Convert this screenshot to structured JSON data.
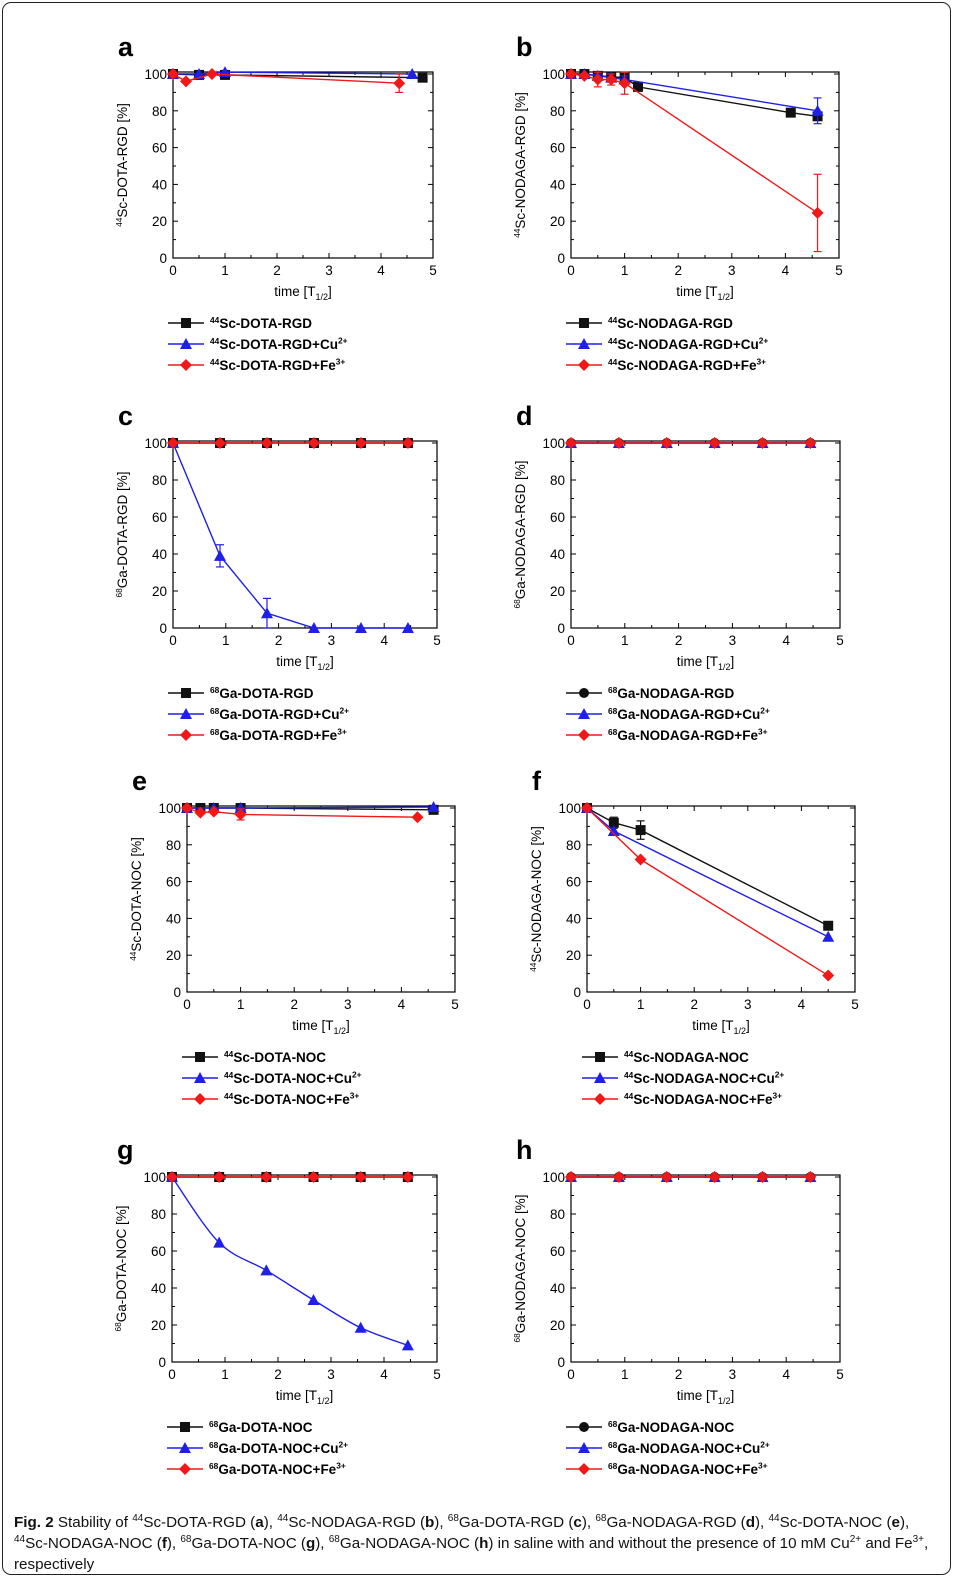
{
  "colors": {
    "black": "#111111",
    "blue": "#1f1fe8",
    "red": "#f01818"
  },
  "figure_label": "Fig. 2",
  "caption_parts": [
    {
      "t": " Stability of "
    },
    {
      "sup": "44"
    },
    {
      "t": "Sc-DOTA-RGD ("
    },
    {
      "b": "a"
    },
    {
      "t": "), "
    },
    {
      "sup": "44"
    },
    {
      "t": "Sc-NODAGA-RGD ("
    },
    {
      "b": "b"
    },
    {
      "t": "), "
    },
    {
      "sup": "68"
    },
    {
      "t": "Ga-DOTA-RGD ("
    },
    {
      "b": "c"
    },
    {
      "t": "), "
    },
    {
      "sup": "68"
    },
    {
      "t": "Ga-NODAGA-RGD ("
    },
    {
      "b": "d"
    },
    {
      "t": "), "
    },
    {
      "sup": "44"
    },
    {
      "t": "Sc-DOTA-NOC ("
    },
    {
      "b": "e"
    },
    {
      "t": "), "
    },
    {
      "sup": "44"
    },
    {
      "t": "Sc-NODAGA-NOC ("
    },
    {
      "b": "f"
    },
    {
      "t": "), "
    },
    {
      "sup": "68"
    },
    {
      "t": "Ga-DOTA-NOC ("
    },
    {
      "b": "g"
    },
    {
      "t": "), "
    },
    {
      "sup": "68"
    },
    {
      "t": "Ga-NODAGA-NOC ("
    },
    {
      "b": "h"
    },
    {
      "t": ") in saline with and without the presence of 10 mM Cu"
    },
    {
      "sup": "2+"
    },
    {
      "t": " and Fe"
    },
    {
      "sup": "3+"
    },
    {
      "t": ", respectively"
    }
  ],
  "chart_data": [
    {
      "panel": "a",
      "type": "line",
      "ylabel": "44Sc-DOTA-RGD [%]",
      "xlabel": "time [T1/2]",
      "xlim": [
        0,
        5
      ],
      "ylim": [
        0,
        100
      ],
      "series": [
        {
          "name": "44Sc-DOTA-RGD",
          "color": "black",
          "marker": "square",
          "x": [
            0,
            0.5,
            1.0,
            4.8
          ],
          "y": [
            100,
            99.5,
            99.5,
            98
          ]
        },
        {
          "name": "44Sc-DOTA-RGD+Cu2+",
          "color": "blue",
          "marker": "triangle",
          "x": [
            0,
            0.5,
            1.0,
            4.6
          ],
          "y": [
            100,
            100,
            101,
            100
          ]
        },
        {
          "name": "44Sc-DOTA-RGD+Fe3+",
          "color": "red",
          "marker": "diamond",
          "x": [
            0,
            0.25,
            0.75,
            4.35
          ],
          "y": [
            100,
            96,
            100,
            95
          ],
          "err": [
            0,
            0,
            0,
            5
          ]
        }
      ]
    },
    {
      "panel": "b",
      "type": "line",
      "ylabel": "44Sc-NODAGA-RGD [%]",
      "xlabel": "time [T1/2]",
      "xlim": [
        0,
        5
      ],
      "ylim": [
        0,
        100
      ],
      "series": [
        {
          "name": "44Sc-NODAGA-RGD",
          "color": "black",
          "marker": "square",
          "x": [
            0,
            0.25,
            0.5,
            0.75,
            1.0,
            1.25,
            4.1,
            4.6
          ],
          "y": [
            100,
            100,
            99,
            98.5,
            98,
            93,
            79,
            77
          ],
          "err": [
            0,
            0,
            1,
            1,
            1,
            1,
            0,
            2
          ]
        },
        {
          "name": "44Sc-NODAGA-RGD+Cu2+",
          "color": "blue",
          "marker": "triangle",
          "x": [
            0,
            0.25,
            0.5,
            0.75,
            1.0,
            4.6
          ],
          "y": [
            100,
            100,
            99,
            98,
            97,
            80
          ],
          "err": [
            0,
            0,
            1,
            2,
            2,
            7
          ]
        },
        {
          "name": "44Sc-NODAGA-RGD+Fe3+",
          "color": "red",
          "marker": "diamond",
          "x": [
            0,
            0.25,
            0.5,
            0.75,
            1.0,
            4.6
          ],
          "y": [
            100,
            99,
            97,
            97,
            95,
            24.5
          ],
          "err": [
            0,
            0,
            4,
            3,
            6,
            21
          ]
        }
      ]
    },
    {
      "panel": "c",
      "type": "line",
      "ylabel": "68Ga-DOTA-RGD [%]",
      "xlabel": "time [T1/2]",
      "xlim": [
        0,
        5
      ],
      "ylim": [
        0,
        100
      ],
      "series": [
        {
          "name": "68Ga-DOTA-RGD",
          "color": "black",
          "marker": "square",
          "x": [
            0,
            0.89,
            1.78,
            2.67,
            3.56,
            4.45
          ],
          "y": [
            100,
            100,
            100,
            100,
            100,
            100
          ]
        },
        {
          "name": "68Ga-DOTA-RGD+Cu2+",
          "color": "blue",
          "marker": "triangle",
          "x": [
            0,
            0.89,
            1.78,
            2.67,
            3.56,
            4.45
          ],
          "y": [
            100,
            39,
            8,
            0,
            0,
            0
          ],
          "err": [
            0,
            6,
            8,
            0,
            0,
            0
          ]
        },
        {
          "name": "68Ga-DOTA-RGD+Fe3+",
          "color": "red",
          "marker": "diamond",
          "x": [
            0,
            0.89,
            1.78,
            2.67,
            3.56,
            4.45
          ],
          "y": [
            100,
            100,
            100,
            100,
            100,
            100
          ]
        }
      ]
    },
    {
      "panel": "d",
      "type": "line",
      "ylabel": "68Ga-NODAGA-RGD [%]",
      "xlabel": "time [T1/2]",
      "xlim": [
        0,
        5
      ],
      "ylim": [
        0,
        100
      ],
      "series": [
        {
          "name": "68Ga-NODAGA-RGD",
          "color": "black",
          "marker": "circle",
          "x": [
            0,
            0.89,
            1.78,
            2.67,
            3.56,
            4.45
          ],
          "y": [
            100,
            100,
            100,
            100,
            100,
            100
          ]
        },
        {
          "name": "68Ga-NODAGA-RGD+Cu2+",
          "color": "blue",
          "marker": "triangle",
          "x": [
            0,
            0.89,
            1.78,
            2.67,
            3.56,
            4.45
          ],
          "y": [
            100,
            100,
            100,
            100,
            100,
            100
          ]
        },
        {
          "name": "68Ga-NODAGA-RGD+Fe3+",
          "color": "red",
          "marker": "diamond",
          "x": [
            0,
            0.89,
            1.78,
            2.67,
            3.56,
            4.45
          ],
          "y": [
            100,
            100,
            100,
            100,
            100,
            100
          ]
        }
      ]
    },
    {
      "panel": "e",
      "type": "line",
      "ylabel": "44Sc-DOTA-NOC [%]",
      "xlabel": "time [T1/2]",
      "xlim": [
        0,
        5
      ],
      "ylim": [
        0,
        100
      ],
      "series": [
        {
          "name": "44Sc-DOTA-NOC",
          "color": "black",
          "marker": "square",
          "x": [
            0,
            0.25,
            0.5,
            1.0,
            4.6
          ],
          "y": [
            100,
            100,
            100,
            100,
            99
          ]
        },
        {
          "name": "44Sc-DOTA-NOC+Cu2+",
          "color": "blue",
          "marker": "triangle",
          "x": [
            0,
            0.5,
            1.0,
            4.6
          ],
          "y": [
            100,
            100,
            100,
            100.5
          ]
        },
        {
          "name": "44Sc-DOTA-NOC+Fe3+",
          "color": "red",
          "marker": "diamond",
          "x": [
            0,
            0.25,
            0.5,
            1.0,
            4.3
          ],
          "y": [
            100,
            97.5,
            98,
            96.5,
            95
          ],
          "err": [
            0,
            0,
            0,
            3,
            0
          ]
        }
      ]
    },
    {
      "panel": "f",
      "type": "line",
      "ylabel": "44Sc-NODAGA-NOC [%]",
      "xlabel": "time [T1/2]",
      "xlim": [
        0,
        5
      ],
      "ylim": [
        0,
        100
      ],
      "series": [
        {
          "name": "44Sc-NODAGA-NOC",
          "color": "black",
          "marker": "square",
          "x": [
            0,
            0.5,
            1.0,
            4.5
          ],
          "y": [
            100,
            92,
            88,
            36
          ],
          "err": [
            0,
            3,
            5,
            2
          ]
        },
        {
          "name": "44Sc-NODAGA-NOC+Cu2+",
          "color": "blue",
          "marker": "triangle",
          "x": [
            0,
            0.5,
            4.5
          ],
          "y": [
            100,
            87.5,
            30
          ]
        },
        {
          "name": "44Sc-NODAGA-NOC+Fe3+",
          "color": "red",
          "marker": "diamond",
          "x": [
            0,
            1.0,
            4.5
          ],
          "y": [
            100,
            72,
            9
          ]
        }
      ]
    },
    {
      "panel": "g",
      "type": "line",
      "ylabel": "68Ga-DOTA-NOC [%]",
      "xlabel": "time [T1/2]",
      "xlim": [
        0,
        5
      ],
      "ylim": [
        0,
        100
      ],
      "series": [
        {
          "name": "68Ga-DOTA-NOC",
          "color": "black",
          "marker": "square",
          "x": [
            0,
            0.89,
            1.78,
            2.67,
            3.56,
            4.45
          ],
          "y": [
            100,
            100,
            100,
            100,
            100,
            100
          ]
        },
        {
          "name": "68Ga-DOTA-NOC+Cu2+",
          "color": "blue",
          "marker": "triangle",
          "x": [
            0,
            0.89,
            1.78,
            2.67,
            3.56,
            4.45
          ],
          "y": [
            100,
            64.5,
            49.5,
            33.5,
            18.5,
            9
          ],
          "smooth": true
        },
        {
          "name": "68Ga-DOTA-NOC+Fe3+",
          "color": "red",
          "marker": "diamond",
          "x": [
            0,
            0.89,
            1.78,
            2.67,
            3.56,
            4.45
          ],
          "y": [
            100,
            100,
            100,
            100,
            100,
            100
          ]
        }
      ]
    },
    {
      "panel": "h",
      "type": "line",
      "ylabel": "68Ga-NODAGA-NOC [%]",
      "xlabel": "time [T1/2]",
      "xlim": [
        0,
        5
      ],
      "ylim": [
        0,
        100
      ],
      "series": [
        {
          "name": "68Ga-NODAGA-NOC",
          "color": "black",
          "marker": "circle",
          "x": [
            0,
            0.89,
            1.78,
            2.67,
            3.56,
            4.45
          ],
          "y": [
            100,
            100,
            100,
            100,
            100,
            100
          ]
        },
        {
          "name": "68Ga-NODAGA-NOC+Cu2+",
          "color": "blue",
          "marker": "triangle",
          "x": [
            0,
            0.89,
            1.78,
            2.67,
            3.56,
            4.45
          ],
          "y": [
            100,
            100,
            100,
            100,
            100,
            100
          ]
        },
        {
          "name": "68Ga-NODAGA-NOC+Fe3+",
          "color": "red",
          "marker": "diamond",
          "x": [
            0,
            0.89,
            1.78,
            2.67,
            3.56,
            4.45
          ],
          "y": [
            100,
            100,
            100,
            100,
            100,
            100
          ]
        }
      ]
    }
  ]
}
